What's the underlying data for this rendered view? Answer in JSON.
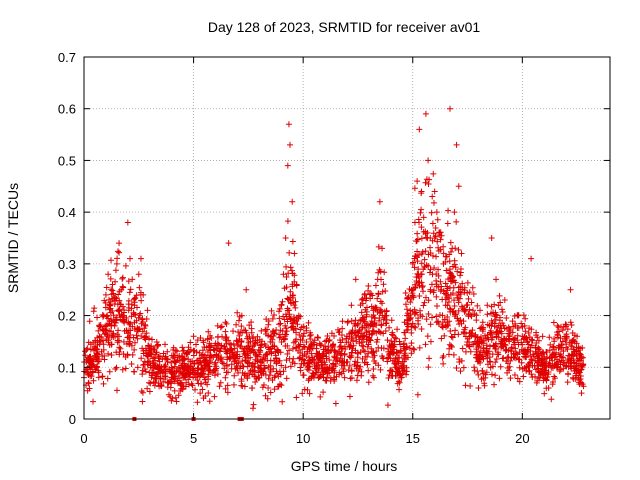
{
  "chart_data": {
    "type": "scatter",
    "title": "Day 128 of 2023, SRMTID for receiver av01",
    "xlabel": "GPS time / hours",
    "ylabel": "SRMTID / TECUs",
    "xlim": [
      0,
      24
    ],
    "ylim": [
      0,
      0.7
    ],
    "xticks": [
      0,
      5,
      10,
      15,
      20
    ],
    "xtick_labels": [
      "0",
      "5",
      "10",
      "15",
      "20"
    ],
    "yticks": [
      0,
      0.1,
      0.2,
      0.3,
      0.4,
      0.5,
      0.6,
      0.7
    ],
    "ytick_labels": [
      "0",
      "0.1",
      "0.2",
      "0.3",
      "0.4",
      "0.5",
      "0.6",
      "0.7"
    ],
    "grid": true,
    "marker": "+",
    "marker_color": "#e00000",
    "grid_color": "#a0a0a0",
    "series": [
      {
        "name": "SRMTID",
        "points": [
          [
            0.0,
            0.08
          ],
          [
            0.1,
            0.11
          ],
          [
            0.2,
            0.07
          ],
          [
            0.3,
            0.12
          ],
          [
            0.4,
            0.09
          ],
          [
            0.5,
            0.14
          ],
          [
            0.6,
            0.1
          ],
          [
            0.7,
            0.16
          ],
          [
            0.8,
            0.13
          ],
          [
            0.9,
            0.2
          ],
          [
            1.0,
            0.24
          ],
          [
            1.1,
            0.28
          ],
          [
            1.2,
            0.22
          ],
          [
            1.3,
            0.26
          ],
          [
            1.4,
            0.18
          ],
          [
            1.5,
            0.3
          ],
          [
            1.6,
            0.34
          ],
          [
            1.7,
            0.25
          ],
          [
            1.8,
            0.2
          ],
          [
            1.9,
            0.12
          ],
          [
            2.0,
            0.38
          ],
          [
            2.1,
            0.31
          ],
          [
            2.2,
            0.27
          ],
          [
            2.3,
            0.22
          ],
          [
            2.4,
            0.19
          ],
          [
            2.5,
            0.28
          ],
          [
            2.6,
            0.31
          ],
          [
            2.7,
            0.24
          ],
          [
            2.8,
            0.18
          ],
          [
            2.9,
            0.21
          ],
          [
            3.0,
            0.14
          ],
          [
            3.2,
            0.1
          ],
          [
            3.4,
            0.12
          ],
          [
            3.6,
            0.09
          ],
          [
            3.8,
            0.13
          ],
          [
            4.0,
            0.08
          ],
          [
            4.2,
            0.11
          ],
          [
            4.4,
            0.07
          ],
          [
            4.6,
            0.1
          ],
          [
            4.8,
            0.13
          ],
          [
            5.0,
            0.16
          ],
          [
            5.1,
            0.08
          ],
          [
            5.3,
            0.05
          ],
          [
            5.5,
            0.1
          ],
          [
            5.7,
            0.14
          ],
          [
            5.9,
            0.12
          ],
          [
            6.1,
            0.18
          ],
          [
            6.3,
            0.11
          ],
          [
            6.5,
            0.09
          ],
          [
            6.6,
            0.34
          ],
          [
            6.8,
            0.17
          ],
          [
            7.0,
            0.13
          ],
          [
            7.2,
            0.2
          ],
          [
            7.4,
            0.25
          ],
          [
            7.6,
            0.15
          ],
          [
            7.8,
            0.1
          ],
          [
            8.0,
            0.08
          ],
          [
            8.2,
            0.12
          ],
          [
            8.4,
            0.06
          ],
          [
            8.6,
            0.14
          ],
          [
            8.8,
            0.11
          ],
          [
            9.0,
            0.22
          ],
          [
            9.1,
            0.28
          ],
          [
            9.2,
            0.35
          ],
          [
            9.3,
            0.49
          ],
          [
            9.35,
            0.57
          ],
          [
            9.4,
            0.53
          ],
          [
            9.5,
            0.42
          ],
          [
            9.6,
            0.32
          ],
          [
            9.7,
            0.26
          ],
          [
            9.8,
            0.2
          ],
          [
            10.0,
            0.16
          ],
          [
            10.2,
            0.13
          ],
          [
            10.4,
            0.11
          ],
          [
            10.6,
            0.09
          ],
          [
            10.8,
            0.12
          ],
          [
            11.0,
            0.15
          ],
          [
            11.2,
            0.1
          ],
          [
            11.4,
            0.08
          ],
          [
            11.6,
            0.13
          ],
          [
            11.8,
            0.11
          ],
          [
            12.0,
            0.16
          ],
          [
            12.2,
            0.22
          ],
          [
            12.4,
            0.27
          ],
          [
            12.6,
            0.19
          ],
          [
            12.8,
            0.24
          ],
          [
            13.0,
            0.17
          ],
          [
            13.2,
            0.21
          ],
          [
            13.4,
            0.27
          ],
          [
            13.5,
            0.42
          ],
          [
            13.6,
            0.33
          ],
          [
            13.8,
            0.2
          ],
          [
            14.0,
            0.14
          ],
          [
            14.2,
            0.1
          ],
          [
            14.4,
            0.07
          ],
          [
            14.6,
            0.12
          ],
          [
            14.8,
            0.2
          ],
          [
            15.0,
            0.3
          ],
          [
            15.1,
            0.38
          ],
          [
            15.2,
            0.46
          ],
          [
            15.3,
            0.56
          ],
          [
            15.4,
            0.44
          ],
          [
            15.5,
            0.39
          ],
          [
            15.6,
            0.59
          ],
          [
            15.7,
            0.5
          ],
          [
            15.8,
            0.35
          ],
          [
            15.9,
            0.28
          ],
          [
            16.0,
            0.44
          ],
          [
            16.1,
            0.4
          ],
          [
            16.2,
            0.36
          ],
          [
            16.3,
            0.25
          ],
          [
            16.4,
            0.3
          ],
          [
            16.5,
            0.22
          ],
          [
            16.6,
            0.18
          ],
          [
            16.7,
            0.6
          ],
          [
            16.8,
            0.33
          ],
          [
            16.9,
            0.4
          ],
          [
            17.0,
            0.53
          ],
          [
            17.1,
            0.45
          ],
          [
            17.2,
            0.29
          ],
          [
            17.4,
            0.21
          ],
          [
            17.6,
            0.14
          ],
          [
            17.8,
            0.1
          ],
          [
            18.0,
            0.06
          ],
          [
            18.2,
            0.17
          ],
          [
            18.4,
            0.22
          ],
          [
            18.6,
            0.35
          ],
          [
            18.8,
            0.27
          ],
          [
            19.0,
            0.18
          ],
          [
            19.2,
            0.23
          ],
          [
            19.4,
            0.15
          ],
          [
            19.6,
            0.12
          ],
          [
            19.8,
            0.2
          ],
          [
            20.0,
            0.16
          ],
          [
            20.2,
            0.1
          ],
          [
            20.4,
            0.31
          ],
          [
            20.6,
            0.13
          ],
          [
            20.8,
            0.08
          ],
          [
            21.0,
            0.11
          ],
          [
            21.2,
            0.06
          ],
          [
            21.4,
            0.14
          ],
          [
            21.6,
            0.18
          ],
          [
            21.8,
            0.12
          ],
          [
            22.0,
            0.16
          ],
          [
            22.2,
            0.25
          ],
          [
            22.4,
            0.13
          ],
          [
            22.6,
            0.09
          ],
          [
            22.7,
            0.05
          ]
        ],
        "envelope": {
          "hours": [
            0,
            1,
            1.5,
            2,
            2.5,
            3,
            4,
            5,
            6,
            7,
            8,
            9,
            9.4,
            10,
            11,
            12,
            13,
            13.5,
            14,
            14.5,
            15,
            15.5,
            16,
            16.5,
            17,
            17.5,
            18,
            19,
            20,
            21,
            22,
            22.8
          ],
          "center": [
            0.09,
            0.16,
            0.21,
            0.19,
            0.17,
            0.11,
            0.09,
            0.1,
            0.11,
            0.13,
            0.11,
            0.15,
            0.22,
            0.13,
            0.11,
            0.13,
            0.17,
            0.2,
            0.13,
            0.1,
            0.22,
            0.3,
            0.29,
            0.24,
            0.23,
            0.18,
            0.13,
            0.16,
            0.13,
            0.1,
            0.13,
            0.1
          ],
          "spread": [
            0.03,
            0.07,
            0.09,
            0.08,
            0.07,
            0.04,
            0.04,
            0.04,
            0.05,
            0.06,
            0.05,
            0.07,
            0.12,
            0.05,
            0.04,
            0.05,
            0.07,
            0.09,
            0.05,
            0.04,
            0.1,
            0.14,
            0.13,
            0.1,
            0.09,
            0.07,
            0.05,
            0.06,
            0.05,
            0.04,
            0.05,
            0.04
          ],
          "count": 2600,
          "seed": 128
        }
      },
      {
        "name": "zero-marks",
        "marker": "square",
        "points": [
          [
            2.3,
            0.0
          ],
          [
            5.0,
            0.0
          ],
          [
            7.1,
            0.0
          ],
          [
            7.2,
            0.0
          ]
        ]
      }
    ]
  }
}
